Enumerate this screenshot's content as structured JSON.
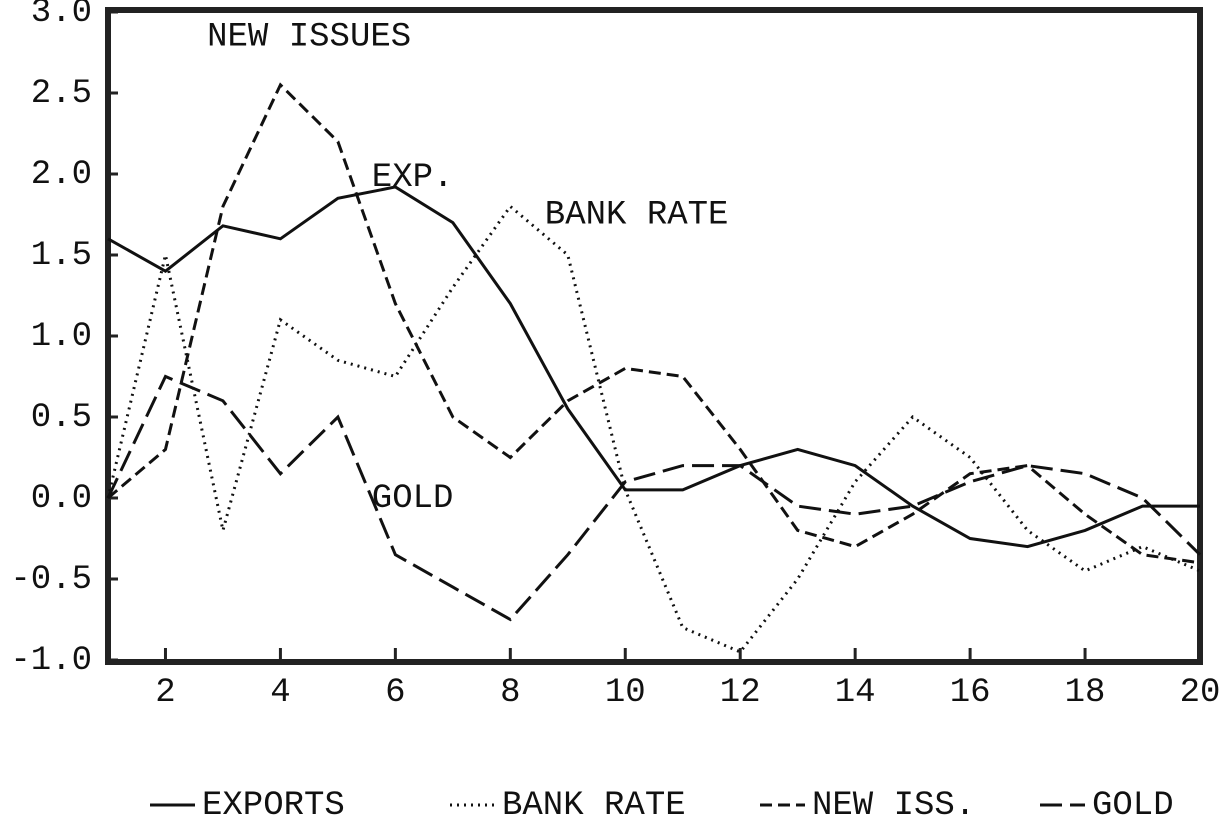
{
  "chart_data": {
    "type": "line",
    "x": [
      1,
      2,
      3,
      4,
      5,
      6,
      7,
      8,
      9,
      10,
      11,
      12,
      13,
      14,
      15,
      16,
      17,
      18,
      19,
      20
    ],
    "series": [
      {
        "name": "EXPORTS",
        "color": "#111111",
        "dash": "solid",
        "values": [
          1.6,
          1.4,
          1.68,
          1.6,
          1.85,
          1.92,
          1.7,
          1.2,
          0.55,
          0.05,
          0.05,
          0.2,
          0.3,
          0.2,
          -0.05,
          -0.25,
          -0.3,
          -0.2,
          -0.05,
          -0.05
        ]
      },
      {
        "name": "BANK RATE",
        "color": "#111111",
        "dash": "dotted",
        "values": [
          0,
          1.5,
          -0.2,
          1.1,
          0.85,
          0.75,
          1.3,
          1.8,
          1.5,
          0.05,
          -0.8,
          -0.95,
          -0.5,
          0.1,
          0.5,
          0.25,
          -0.2,
          -0.45,
          -0.3,
          -0.45
        ]
      },
      {
        "name": "NEW ISS.",
        "color": "#111111",
        "dash": "dashed",
        "values": [
          0,
          0.3,
          1.8,
          2.55,
          2.2,
          1.2,
          0.5,
          0.25,
          0.6,
          0.8,
          0.75,
          0.3,
          -0.2,
          -0.3,
          -0.1,
          0.15,
          0.2,
          -0.1,
          -0.35,
          -0.4
        ]
      },
      {
        "name": "GOLD",
        "color": "#111111",
        "dash": "longdash",
        "values": [
          0,
          0.75,
          0.6,
          0.15,
          0.5,
          -0.35,
          -0.55,
          -0.75,
          -0.35,
          0.1,
          0.2,
          0.2,
          -0.05,
          -0.1,
          -0.05,
          0.1,
          0.2,
          0.15,
          0,
          -0.35
        ]
      }
    ],
    "annotations": [
      "NEW ISSUES",
      "EXP.",
      "BANK RATE",
      "GOLD"
    ],
    "xlim": [
      1,
      20
    ],
    "xticks": [
      2,
      4,
      6,
      8,
      10,
      12,
      14,
      16,
      18,
      20
    ],
    "ylim": [
      -1,
      3
    ],
    "yticks": [
      {
        "value": -1,
        "label": "-1.0"
      },
      {
        "value": -0.5,
        "label": "-0.5"
      },
      {
        "value": 0,
        "label": "0.0"
      },
      {
        "value": 0.5,
        "label": "0.5"
      },
      {
        "value": 1,
        "label": "1.0"
      },
      {
        "value": 1.5,
        "label": "1.5"
      },
      {
        "value": 2,
        "label": "2.0"
      },
      {
        "value": 2.5,
        "label": "2.5"
      },
      {
        "value": 3,
        "label": "3.0"
      }
    ],
    "grid": false,
    "legend": "bottom"
  }
}
